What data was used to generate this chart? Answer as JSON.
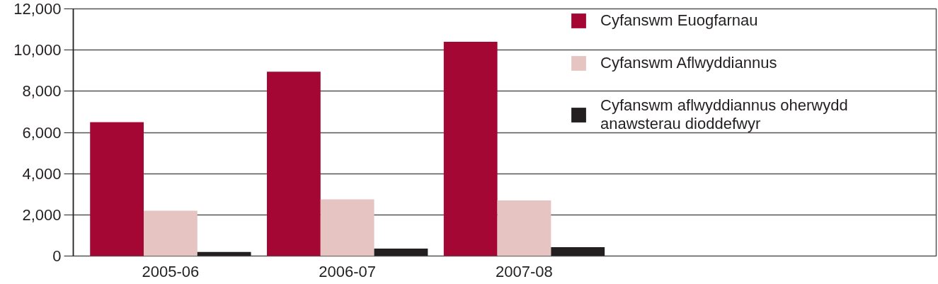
{
  "chart_data": {
    "type": "bar",
    "categories": [
      "2005-06",
      "2006-07",
      "2007-08"
    ],
    "series": [
      {
        "name": "Cyfanswm Euogfarnau",
        "color": "#a50734",
        "values": [
          6500,
          8950,
          10400
        ]
      },
      {
        "name": "Cyfanswm Aflwyddiannus",
        "color": "#e6c4c1",
        "values": [
          2200,
          2750,
          2700
        ]
      },
      {
        "name": "Cyfanswm aflwyddiannus oherwydd anawsterau dioddefwyr",
        "color": "#231f20",
        "values": [
          200,
          360,
          430
        ]
      }
    ],
    "ylim": [
      0,
      12000
    ],
    "yticks": [
      0,
      {
        "value": 2000,
        "label": "2,000"
      },
      {
        "value": 4000,
        "label": "4,000"
      },
      {
        "value": 6000,
        "label": "6,000"
      },
      {
        "value": 8000,
        "label": "8,000"
      },
      {
        "value": 10000,
        "label": "10,000"
      },
      {
        "value": 12000,
        "label": "12,000"
      }
    ],
    "grid": "y",
    "legend": "top right"
  }
}
